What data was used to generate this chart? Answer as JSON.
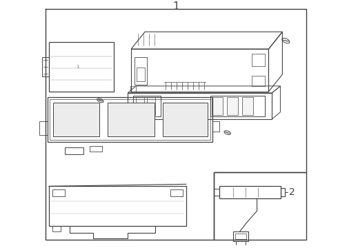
{
  "bg_color": "#ffffff",
  "lc": "#404040",
  "lc2": "#505050",
  "fig_width": 4.9,
  "fig_height": 3.6,
  "dpi": 100,
  "label1": "1",
  "label2": "2"
}
